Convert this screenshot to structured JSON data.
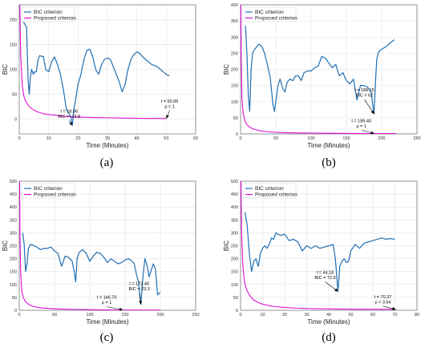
{
  "chart_data": [
    {
      "type": "line",
      "panel_label": "(a)",
      "xlabel": "Time (Minutes)",
      "ylabel": "BIC",
      "xlim": [
        0,
        60
      ],
      "ylim": [
        -30,
        230
      ],
      "xticks": [
        0,
        10,
        20,
        30,
        40,
        50,
        60
      ],
      "yticks": [
        0,
        50,
        100,
        150,
        200
      ],
      "grid": true,
      "legend": "top-left",
      "series": [
        {
          "name": "BIC criterion",
          "color": "#1f6fb4",
          "x": [
            1,
            1.5,
            2,
            2.5,
            3,
            3.4,
            3.8,
            4.2,
            4.8,
            5.2,
            5.8,
            6.4,
            7,
            7.6,
            8.2,
            9,
            10,
            11,
            12,
            13,
            14,
            15,
            16,
            17,
            17.5,
            18.06,
            18.6,
            19.2,
            20,
            21,
            22,
            23,
            24,
            25,
            26,
            27,
            28,
            29,
            30,
            31,
            32,
            33,
            34,
            35,
            36,
            37,
            38,
            39,
            40,
            41,
            42,
            43,
            44,
            45,
            46,
            47,
            48,
            49,
            50,
            51
          ],
          "y": [
            205,
            195,
            190,
            185,
            80,
            50,
            85,
            100,
            90,
            95,
            95,
            120,
            128,
            126,
            126,
            100,
            95,
            115,
            125,
            110,
            90,
            60,
            20,
            10,
            5,
            -12.9,
            20,
            40,
            70,
            90,
            120,
            138,
            141,
            125,
            100,
            90,
            110,
            120,
            123,
            120,
            105,
            90,
            75,
            55,
            70,
            100,
            120,
            130,
            135,
            132,
            125,
            120,
            115,
            110,
            108,
            105,
            100,
            95,
            90,
            87
          ]
        },
        {
          "name": "Proposed criterion",
          "color": "#dd10d6",
          "x": [
            0.2,
            0.5,
            1,
            1.5,
            2,
            3,
            4,
            5,
            6,
            8,
            10,
            13,
            16,
            20,
            25,
            30,
            35,
            40,
            45,
            50.06
          ],
          "y": [
            230,
            130,
            70,
            48,
            38,
            28,
            22,
            18,
            15,
            11,
            9,
            7,
            5,
            4,
            3,
            2.5,
            2,
            1.5,
            1.2,
            1
          ]
        }
      ],
      "annotations": [
        {
          "lines": [
            "t = 18.06",
            "BIC = -12.9"
          ],
          "x": 18.06,
          "y": -12.9
        },
        {
          "lines": [
            "t = 50.06",
            "ρ = 1"
          ],
          "x": 50.06,
          "y": 1
        }
      ]
    },
    {
      "type": "line",
      "panel_label": "(b)",
      "xlabel": "Time (Minutes)",
      "ylabel": "BIC",
      "xlim": [
        0,
        250
      ],
      "ylim": [
        0,
        400
      ],
      "xticks": [
        0,
        50,
        100,
        150,
        200,
        250
      ],
      "yticks": [
        0,
        50,
        100,
        150,
        200,
        250,
        300,
        350,
        400
      ],
      "grid": true,
      "legend": "top-left",
      "series": [
        {
          "name": "BIC criterion",
          "color": "#1f6fb4",
          "x": [
            7,
            9,
            11,
            13,
            15,
            17,
            20,
            23,
            26,
            30,
            34,
            38,
            42,
            46,
            48,
            50,
            53,
            56,
            60,
            63,
            66,
            70,
            74,
            78,
            82,
            86,
            90,
            95,
            100,
            105,
            110,
            115,
            120,
            125,
            130,
            135,
            140,
            145,
            150,
            155,
            160,
            165,
            170,
            175,
            180,
            185,
            189.15,
            191,
            193,
            195,
            198,
            202,
            206,
            210,
            214,
            218
          ],
          "y": [
            335,
            250,
            120,
            70,
            200,
            250,
            262,
            270,
            278,
            272,
            250,
            215,
            175,
            90,
            70,
            100,
            150,
            170,
            140,
            130,
            160,
            170,
            165,
            180,
            180,
            165,
            190,
            195,
            195,
            205,
            210,
            240,
            235,
            220,
            205,
            215,
            180,
            190,
            165,
            155,
            170,
            105,
            150,
            150,
            145,
            130,
            62,
            150,
            230,
            250,
            260,
            265,
            270,
            278,
            285,
            292
          ]
        },
        {
          "name": "Proposed criterion",
          "color": "#dd10d6",
          "x": [
            0.5,
            1,
            2,
            3,
            4,
            6,
            8,
            10,
            13,
            16,
            20,
            25,
            30,
            40,
            50,
            60,
            80,
            100,
            130,
            160,
            189.4,
            200,
            220
          ],
          "y": [
            400,
            230,
            110,
            80,
            60,
            42,
            32,
            27,
            21,
            17,
            14,
            11,
            9,
            6.5,
            5,
            4,
            3,
            2.5,
            2,
            1.5,
            1,
            1,
            1
          ]
        }
      ],
      "annotations": [
        {
          "lines": [
            "t = 189.15",
            "BIC = 62"
          ],
          "x": 189.15,
          "y": 62
        },
        {
          "lines": [
            "t = 189.40",
            "ρ = 1"
          ],
          "x": 189.4,
          "y": 1
        }
      ]
    },
    {
      "type": "line",
      "panel_label": "(c)",
      "xlabel": "Time (Minutes)",
      "ylabel": "BIC",
      "xlim": [
        0,
        250
      ],
      "ylim": [
        0,
        500
      ],
      "xticks": [
        0,
        50,
        100,
        150,
        200,
        250
      ],
      "yticks": [
        0,
        50,
        100,
        150,
        200,
        250,
        300,
        350,
        400,
        450,
        500
      ],
      "grid": true,
      "legend": "top-left",
      "series": [
        {
          "name": "BIC criterion",
          "color": "#1f6fb4",
          "x": [
            5,
            7,
            9,
            11,
            13,
            16,
            20,
            25,
            30,
            35,
            40,
            45,
            50,
            55,
            60,
            65,
            70,
            75,
            78,
            80,
            82,
            85,
            90,
            95,
            100,
            105,
            110,
            115,
            120,
            125,
            130,
            135,
            140,
            145,
            150,
            155,
            160,
            163,
            166,
            169,
            172.4,
            175,
            178,
            181,
            184,
            187,
            190,
            193,
            196,
            200
          ],
          "y": [
            300,
            255,
            150,
            180,
            240,
            255,
            252,
            245,
            235,
            240,
            240,
            245,
            230,
            220,
            170,
            210,
            205,
            190,
            150,
            110,
            200,
            225,
            235,
            220,
            190,
            210,
            225,
            220,
            205,
            185,
            200,
            190,
            180,
            185,
            195,
            200,
            190,
            180,
            140,
            110,
            23.3,
            120,
            200,
            175,
            130,
            155,
            180,
            160,
            60,
            70
          ]
        },
        {
          "name": "Proposed criterion",
          "color": "#dd10d6",
          "x": [
            0.5,
            1,
            2,
            3,
            4,
            6,
            8,
            10,
            13,
            16,
            20,
            25,
            30,
            40,
            50,
            60,
            80,
            100,
            120,
            146.7,
            160,
            180,
            200
          ],
          "y": [
            500,
            300,
            150,
            95,
            70,
            48,
            37,
            30,
            24,
            19,
            15,
            12,
            10,
            7.5,
            6,
            5,
            3.5,
            2.5,
            1.8,
            1,
            1,
            1,
            1
          ]
        }
      ],
      "annotations": [
        {
          "lines": [
            "t = 146.70",
            "ρ = 1"
          ],
          "x": 146.7,
          "y": 1
        },
        {
          "lines": [
            "t = 172.40",
            "BIC = 23.3"
          ],
          "x": 172.4,
          "y": 23.3
        }
      ]
    },
    {
      "type": "line",
      "panel_label": "(d)",
      "xlabel": "Time (Minutes)",
      "ylabel": "BIC",
      "xlim": [
        0,
        80
      ],
      "ylim": [
        0,
        500
      ],
      "xticks": [
        0,
        10,
        20,
        30,
        40,
        50,
        60,
        70,
        80
      ],
      "yticks": [
        0,
        50,
        100,
        150,
        200,
        250,
        300,
        350,
        400,
        450,
        500
      ],
      "grid": true,
      "legend": "top-left",
      "series": [
        {
          "name": "BIC criterion",
          "color": "#1f6fb4",
          "x": [
            2,
            3,
            4,
            5,
            6,
            7,
            8,
            9,
            10,
            11,
            12,
            13,
            14,
            15,
            16,
            18,
            20,
            22,
            24,
            26,
            28,
            30,
            32,
            34,
            36,
            38,
            40,
            42,
            43,
            44.18,
            45,
            46,
            47,
            48,
            49,
            50,
            52,
            54,
            56,
            58,
            60,
            62,
            64,
            66,
            68,
            70
          ],
          "y": [
            380,
            330,
            220,
            150,
            190,
            200,
            170,
            220,
            240,
            250,
            240,
            255,
            280,
            275,
            300,
            290,
            295,
            270,
            275,
            265,
            230,
            250,
            240,
            250,
            240,
            245,
            250,
            255,
            200,
            72.9,
            170,
            190,
            200,
            185,
            190,
            230,
            255,
            240,
            260,
            265,
            270,
            275,
            280,
            275,
            278,
            275
          ]
        },
        {
          "name": "Proposed criterion",
          "color": "#dd10d6",
          "x": [
            0.2,
            0.5,
            1,
            1.5,
            2,
            3,
            4,
            5,
            6,
            8,
            10,
            13,
            16,
            20,
            25,
            30,
            40,
            50,
            60,
            70.37
          ],
          "y": [
            500,
            300,
            180,
            130,
            100,
            75,
            60,
            48,
            40,
            30,
            24,
            18,
            14,
            11,
            8.5,
            7,
            5.5,
            4.5,
            4,
            3.64
          ]
        }
      ],
      "annotations": [
        {
          "lines": [
            "t = 44.18",
            "BIC = 72.9"
          ],
          "x": 44.18,
          "y": 72.9
        },
        {
          "lines": [
            "t = 70.37",
            "ρ = 3.64"
          ],
          "x": 70.37,
          "y": 3.64
        }
      ]
    }
  ]
}
